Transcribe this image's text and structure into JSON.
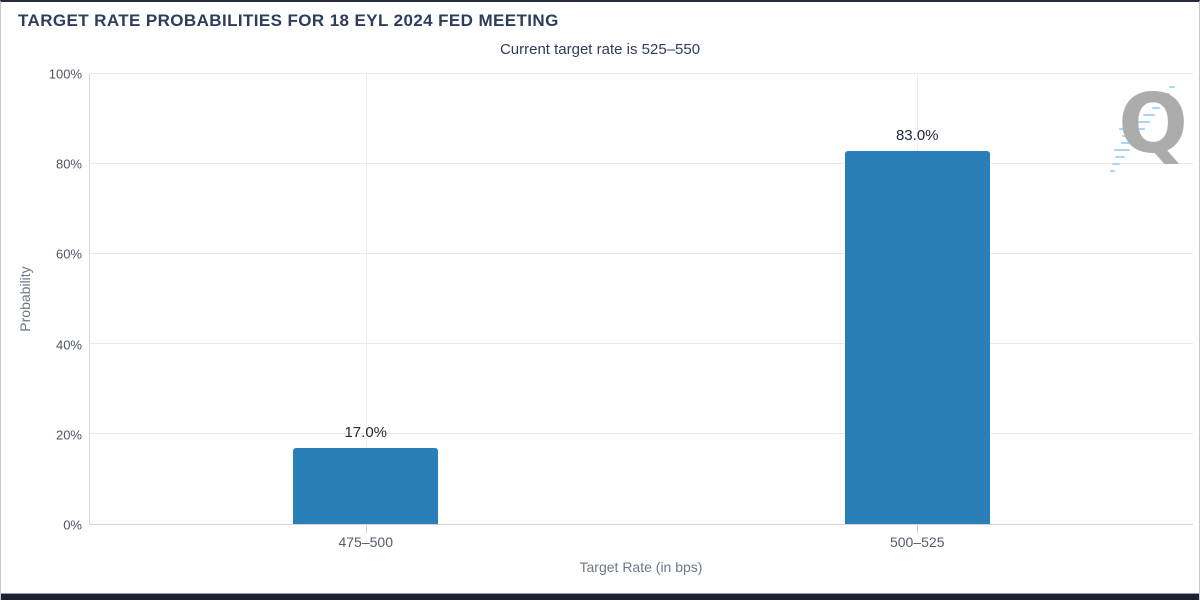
{
  "header": {
    "title": "TARGET RATE PROBABILITIES FOR 18 EYL 2024 FED MEETING",
    "subtitle": "Current target rate is 525–550"
  },
  "chart_data": {
    "type": "bar",
    "title": "TARGET RATE PROBABILITIES FOR 18 EYL 2024 FED MEETING",
    "subtitle": "Current target rate is 525–550",
    "categories": [
      "475–500",
      "500–525"
    ],
    "values": [
      17.0,
      83.0
    ],
    "value_labels": [
      "17.0%",
      "83.0%"
    ],
    "xlabel": "Target Rate (in bps)",
    "ylabel": "Probability",
    "ylim": [
      0,
      100
    ],
    "ytick_labels": [
      "0%",
      "20%",
      "40%",
      "60%",
      "80%",
      "100%"
    ],
    "yticks": [
      0,
      20,
      40,
      60,
      80,
      100
    ],
    "grid": true,
    "legend": "none",
    "bar_color": "#2a7fb8"
  },
  "watermark": {
    "letter": "Q"
  },
  "colors": {
    "bar": "#2a7fb8",
    "title_text": "#2e3d5c",
    "axis_tick_text": "#4c5564",
    "axis_title_text": "#6f7884",
    "gridline": "#e9e9e9",
    "logo_gray": "#acacac",
    "logo_dash_blue": "#a8d6f2",
    "footer_strip": "#1b2133"
  }
}
